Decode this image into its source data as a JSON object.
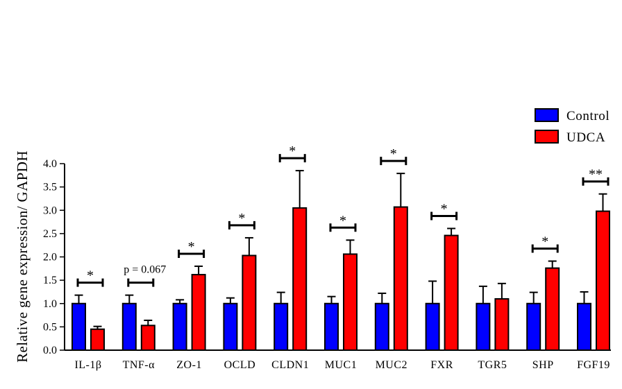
{
  "chart_data": {
    "type": "bar",
    "ylabel": "Relative gene expression/ GAPDH",
    "ylim": [
      0,
      4.0
    ],
    "yticks": [
      "0.0",
      "0.5",
      "1.0",
      "1.5",
      "2.0",
      "2.5",
      "3.0",
      "3.5",
      "4.0"
    ],
    "categories": [
      "IL-1β",
      "TNF-α",
      "ZO-1",
      "OCLD",
      "CLDN1",
      "MUC1",
      "MUC2",
      "FXR",
      "TGR5",
      "SHP",
      "FGF19"
    ],
    "series": [
      {
        "name": "Control",
        "color": "#0000ff",
        "values": [
          1.0,
          1.0,
          1.0,
          1.0,
          1.0,
          1.0,
          1.0,
          1.0,
          1.0,
          1.0,
          1.0
        ],
        "errors": [
          0.18,
          0.18,
          0.08,
          0.12,
          0.24,
          0.15,
          0.22,
          0.48,
          0.37,
          0.24,
          0.25
        ]
      },
      {
        "name": "UDCA",
        "color": "#ff0000",
        "values": [
          0.45,
          0.53,
          1.62,
          2.03,
          3.05,
          2.06,
          3.07,
          2.46,
          1.1,
          1.76,
          2.98
        ],
        "errors": [
          0.06,
          0.11,
          0.18,
          0.38,
          0.8,
          0.3,
          0.72,
          0.15,
          0.33,
          0.15,
          0.37
        ]
      }
    ],
    "annotations": [
      "*",
      "p = 0.067",
      "*",
      "*",
      "*",
      "*",
      "*",
      "*",
      "",
      "*",
      "**"
    ],
    "legend": "top-right",
    "grid": false
  }
}
